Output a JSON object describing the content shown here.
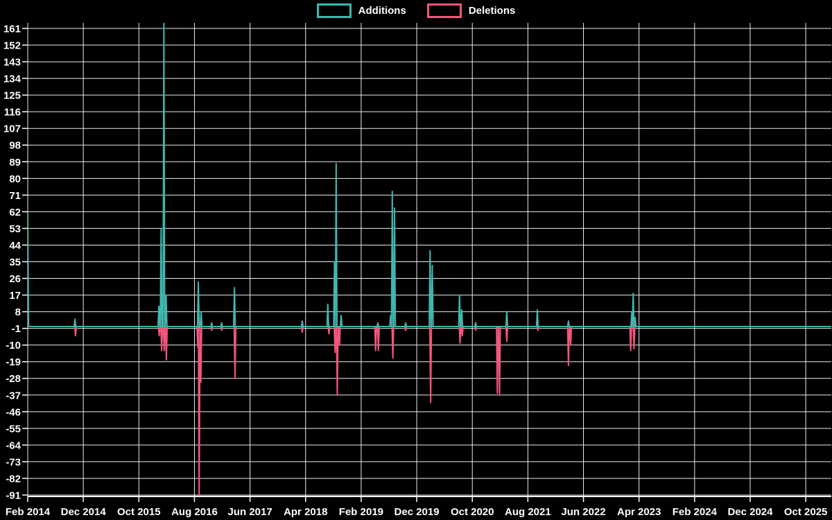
{
  "page": {
    "background": "#000000",
    "text_color": "#ffffff",
    "grid_color": "#ededed",
    "axis_color": "#ffffff"
  },
  "chart_data": {
    "type": "line",
    "title": "",
    "grid": true,
    "legend": {
      "position": "top-center",
      "entries": [
        {
          "label": "Additions",
          "color": "#3fb7af"
        },
        {
          "label": "Deletions",
          "color": "#f2567c"
        }
      ]
    },
    "x_axis": {
      "label": "",
      "tick_labels": [
        "Feb 2014",
        "Dec 2014",
        "Oct 2015",
        "Aug 2016",
        "Jun 2017",
        "Apr 2018",
        "Feb 2019",
        "Dec 2019",
        "Oct 2020",
        "Aug 2021",
        "Jun 2022",
        "Apr 2023",
        "Feb 2024",
        "Dec 2024",
        "Oct 2025"
      ],
      "tick_months": [
        0,
        10,
        20,
        30,
        40,
        50,
        60,
        70,
        80,
        90,
        100,
        110,
        120,
        130,
        140
      ],
      "range_months": [
        0,
        144.6
      ]
    },
    "y_axis": {
      "label": "",
      "min": -91,
      "max": 161,
      "step": 9,
      "tick_values": [
        161,
        152,
        143,
        134,
        125,
        116,
        107,
        98,
        89,
        80,
        71,
        62,
        53,
        44,
        35,
        26,
        17,
        8,
        -1,
        -10,
        -19,
        -28,
        -37,
        -46,
        -55,
        -64,
        -73,
        -82,
        -91
      ]
    },
    "series": [
      {
        "name": "Additions",
        "color": "#3fb7af",
        "baseline": 0,
        "spikes": [
          [
            0,
            62
          ],
          [
            8.5,
            4
          ],
          [
            23.6,
            11
          ],
          [
            24.0,
            53
          ],
          [
            24.5,
            165
          ],
          [
            24.9,
            17
          ],
          [
            30.7,
            24
          ],
          [
            31.2,
            8
          ],
          [
            33.1,
            2
          ],
          [
            34.9,
            2
          ],
          [
            37.2,
            21
          ],
          [
            49.4,
            3
          ],
          [
            54.0,
            12
          ],
          [
            55.2,
            35
          ],
          [
            55.5,
            88
          ],
          [
            56.4,
            6
          ],
          [
            63.0,
            2
          ],
          [
            65.3,
            6
          ],
          [
            65.6,
            73
          ],
          [
            66.0,
            64
          ],
          [
            68.0,
            2
          ],
          [
            72.4,
            41
          ],
          [
            72.8,
            33
          ],
          [
            77.7,
            17
          ],
          [
            78.1,
            9
          ],
          [
            80.6,
            2
          ],
          [
            86.2,
            8
          ],
          [
            91.7,
            9
          ],
          [
            97.3,
            3
          ],
          [
            108.7,
            8
          ],
          [
            108.95,
            18
          ],
          [
            109.3,
            5
          ]
        ]
      },
      {
        "name": "Deletions",
        "color": "#f2567c",
        "baseline": 0,
        "spikes": [
          [
            8.6,
            -5
          ],
          [
            23.65,
            -5
          ],
          [
            24.1,
            -13
          ],
          [
            24.55,
            -13
          ],
          [
            24.95,
            -18
          ],
          [
            30.6,
            -11
          ],
          [
            30.85,
            -91
          ],
          [
            31.15,
            -30
          ],
          [
            33.1,
            -2
          ],
          [
            34.9,
            -2
          ],
          [
            37.3,
            -28
          ],
          [
            49.4,
            -3
          ],
          [
            54.2,
            -4
          ],
          [
            55.3,
            -14
          ],
          [
            55.7,
            -37
          ],
          [
            56.1,
            -10
          ],
          [
            62.6,
            -13
          ],
          [
            63.1,
            -13
          ],
          [
            65.7,
            -17
          ],
          [
            68.0,
            -2
          ],
          [
            72.5,
            -41
          ],
          [
            77.8,
            -9
          ],
          [
            78.2,
            -5
          ],
          [
            80.6,
            -2
          ],
          [
            84.5,
            -36
          ],
          [
            84.9,
            -37
          ],
          [
            86.2,
            -8
          ],
          [
            91.8,
            -2
          ],
          [
            97.3,
            -21
          ],
          [
            97.7,
            -10
          ],
          [
            108.5,
            -13
          ],
          [
            109.1,
            -12
          ]
        ]
      }
    ]
  }
}
